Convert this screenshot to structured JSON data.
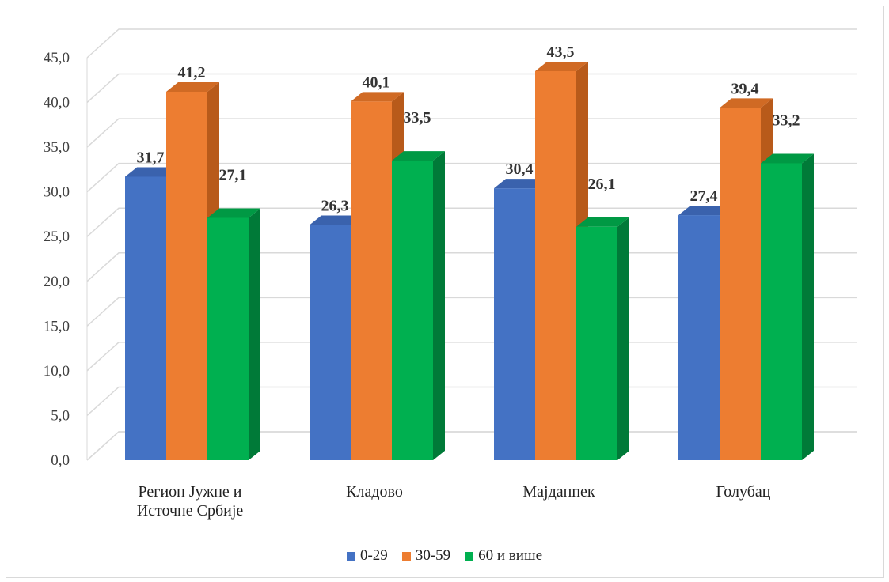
{
  "chart_data": {
    "type": "bar",
    "categories": [
      "Регион Јужне и Источне Србије",
      "Кладово",
      "Мајданпек",
      "Голубац"
    ],
    "category_lines": [
      [
        "Регион Јужне и",
        "Источне Србије"
      ],
      [
        "Кладово"
      ],
      [
        "Мајданпек"
      ],
      [
        "Голубац"
      ]
    ],
    "series": [
      {
        "name": "0-29",
        "values": [
          31.7,
          26.3,
          30.4,
          27.4
        ],
        "labels": [
          "31,7",
          "26,3",
          "30,4",
          "27,4"
        ],
        "color": "#4472C4",
        "side": "#2F5597",
        "top": "#3A62AD"
      },
      {
        "name": "30-59",
        "values": [
          41.2,
          40.1,
          43.5,
          39.4
        ],
        "labels": [
          "41,2",
          "40,1",
          "43,5",
          "39,4"
        ],
        "color": "#ED7D31",
        "side": "#B85A1A",
        "top": "#D06A24"
      },
      {
        "name": "60 и више",
        "values": [
          27.1,
          33.5,
          26.1,
          33.2
        ],
        "labels": [
          "27,1",
          "33,5",
          "26,1",
          "33,2"
        ],
        "color": "#00B050",
        "side": "#007A38",
        "top": "#009944"
      }
    ],
    "y_ticks": [
      "0,0",
      "5,0",
      "10,0",
      "15,0",
      "20,0",
      "25,0",
      "30,0",
      "35,0",
      "40,0",
      "45,0"
    ],
    "ylim": [
      0,
      45
    ],
    "grid": true,
    "legend_position": "bottom",
    "title": "",
    "xlabel": "",
    "ylabel": ""
  }
}
